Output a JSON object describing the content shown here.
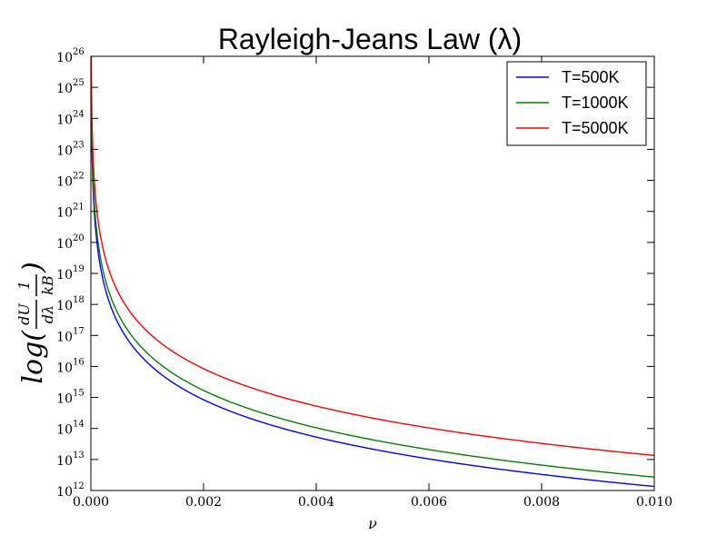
{
  "chart_data": {
    "type": "line",
    "title": "Rayleigh-Jeans Law (λ)",
    "xlabel": "ν",
    "ylabel": {
      "prefix": "log(",
      "frac1_num": "dU",
      "frac1_den": "dλ",
      "frac2_num": "1",
      "frac2_den": "kB",
      "suffix": ")"
    },
    "xlim": [
      0.0,
      0.01
    ],
    "y_log_exponent_range": [
      12,
      26
    ],
    "y_scale": "log",
    "x_ticks": [
      "0.000",
      "0.002",
      "0.004",
      "0.006",
      "0.008",
      "0.010"
    ],
    "y_ticks": [
      {
        "base": "10",
        "exp": "12"
      },
      {
        "base": "10",
        "exp": "13"
      },
      {
        "base": "10",
        "exp": "14"
      },
      {
        "base": "10",
        "exp": "15"
      },
      {
        "base": "10",
        "exp": "16"
      },
      {
        "base": "10",
        "exp": "17"
      },
      {
        "base": "10",
        "exp": "18"
      },
      {
        "base": "10",
        "exp": "19"
      },
      {
        "base": "10",
        "exp": "20"
      },
      {
        "base": "10",
        "exp": "21"
      },
      {
        "base": "10",
        "exp": "22"
      },
      {
        "base": "10",
        "exp": "23"
      },
      {
        "base": "10",
        "exp": "24"
      },
      {
        "base": "10",
        "exp": "25"
      },
      {
        "base": "10",
        "exp": "26"
      }
    ],
    "legend_position": "top-right",
    "grid": false,
    "series": [
      {
        "name": "T=500K",
        "color": "#0000ff",
        "value_at_x_0_01": 1350000000000.0
      },
      {
        "name": "T=1000K",
        "color": "#008000",
        "value_at_x_0_01": 2700000000000.0
      },
      {
        "name": "T=5000K",
        "color": "#ff0000",
        "value_at_x_0_01": 13500000000000.0
      }
    ]
  }
}
